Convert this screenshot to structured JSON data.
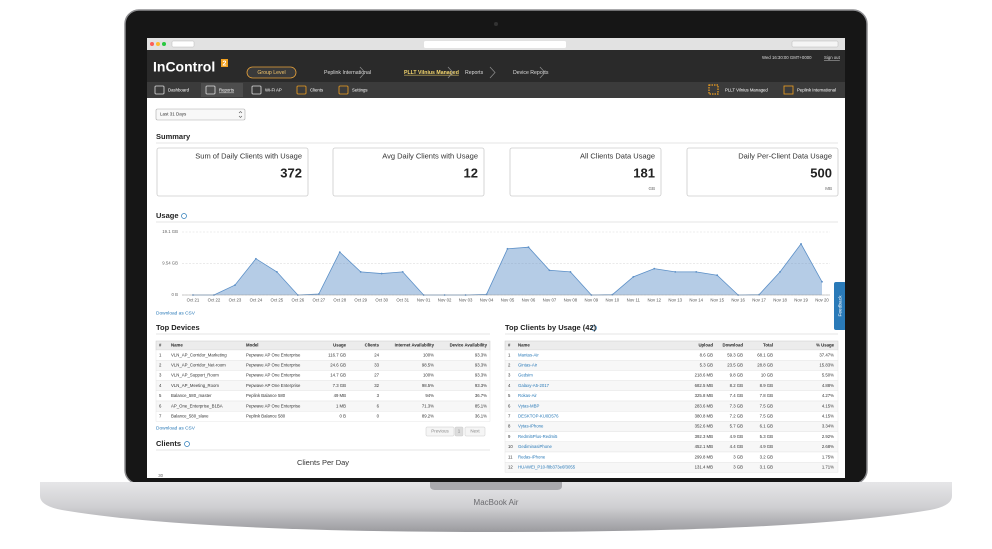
{
  "header": {
    "logo": "InControl",
    "logo_badge": "2",
    "breadcrumb": [
      "Group Level",
      "Peplink International",
      "PLLT Vilnius Managed",
      "Reports",
      "Device Reports"
    ],
    "datetime": "Wed 16:30:00 GMT+0000",
    "sign_out": "Sign out"
  },
  "nav": {
    "items": [
      "Dashboard",
      "Reports",
      "Wi-Fi AP",
      "Clients",
      "Settings"
    ],
    "right": [
      "PLLT Vilnius Managed",
      "Peplink International"
    ]
  },
  "filter": "Last 31 Days",
  "summary": {
    "title": "Summary",
    "cards": [
      {
        "label": "Sum of Daily Clients with Usage",
        "value": 372
      },
      {
        "label": "Avg Daily Clients with Usage",
        "value": 12
      },
      {
        "label": "All Clients Data Usage",
        "value": 181,
        "unit": "GB"
      },
      {
        "label": "Daily Per-Client Data Usage",
        "value": 500,
        "unit": "MB"
      }
    ]
  },
  "chart_data": {
    "type": "area",
    "title": "Usage",
    "color": "#5b8fc7",
    "categories": [
      "Oct 21",
      "Oct 22",
      "Oct 23",
      "Oct 24",
      "Oct 25",
      "Oct 26",
      "Oct 27",
      "Oct 28",
      "Oct 29",
      "Oct 30",
      "Oct 31",
      "Nov 01",
      "Nov 02",
      "Nov 03",
      "Nov 04",
      "Nov 05",
      "Nov 06",
      "Nov 07",
      "Nov 08",
      "Nov 09",
      "Nov 10",
      "Nov 11",
      "Nov 12",
      "Nov 13",
      "Nov 14",
      "Nov 15",
      "Nov 16",
      "Nov 17",
      "Nov 18",
      "Nov 19",
      "Nov 20"
    ],
    "values": [
      0,
      0,
      3,
      11,
      7,
      0,
      0.3,
      13,
      7,
      6.5,
      7,
      0,
      0,
      0,
      0.2,
      14,
      14.5,
      7.5,
      7,
      0,
      0.1,
      5.5,
      8,
      7,
      7,
      6,
      0,
      0.1,
      7,
      15.5,
      4
    ],
    "ylim": [
      0,
      19.1
    ],
    "yticks": [
      {
        "value": 0,
        "label": "0 B"
      },
      {
        "value": 9.54,
        "label": "9.54 GB"
      },
      {
        "value": 19.1,
        "label": "19.1 GB"
      }
    ],
    "grid": true
  },
  "download_csv": "Download as CSV",
  "top_devices": {
    "title": "Top Devices",
    "columns": [
      "#",
      "Name",
      "Model",
      "Usage",
      "Clients",
      "Internet Availability",
      "Device Availability"
    ],
    "rows": [
      [
        1,
        "VLN_AP_Corridor_Marketing",
        "Pepwave AP One Enterprise",
        "116.7 GB",
        "24",
        "100%",
        "93.3%"
      ],
      [
        2,
        "VLN_AP_Corridor_Net-room",
        "Pepwave AP One Enterprise",
        "24.6 GB",
        "33",
        "98.5%",
        "93.3%"
      ],
      [
        3,
        "VLN_AP_Support_Room",
        "Pepwave AP One Enterprise",
        "14.7 GB",
        "27",
        "100%",
        "93.3%"
      ],
      [
        4,
        "VLN_AP_Meeting_Room",
        "Pepwave AP One Enterprise",
        "7.3 GB",
        "32",
        "98.5%",
        "93.3%"
      ],
      [
        5,
        "Balance_580_master",
        "Peplink Balance 580",
        "49 MB",
        "3",
        "94%",
        "36.7%"
      ],
      [
        6,
        "AP_One_Enterprise_B1BA",
        "Pepwave AP One Enterprise",
        "1 MB",
        "6",
        "71.3%",
        "85.1%"
      ],
      [
        7,
        "Balance_580_slave",
        "Peplink Balance 580",
        "0 B",
        "0",
        "89.2%",
        "36.1%"
      ]
    ],
    "download": "Download as CSV",
    "pagination": [
      "Previous",
      "1",
      "Next"
    ]
  },
  "top_clients": {
    "title": "Top Clients by Usage (42)",
    "columns": [
      "#",
      "Name",
      "Upload",
      "Download",
      "Total",
      "% Usage"
    ],
    "rows": [
      [
        1,
        "Mantas-Air",
        "8.6 GB",
        "59.3 GB",
        "68.1 GB",
        "37.47%"
      ],
      [
        2,
        "Gintas-Air",
        "5.3 GB",
        "23.5 GB",
        "28.8 GB",
        "15.83%"
      ],
      [
        3,
        "Gedsim",
        "218.6 MB",
        "9.8 GB",
        "10 GB",
        "5.50%"
      ],
      [
        4,
        "Galaxy-A5-2017",
        "682.5 MB",
        "8.2 GB",
        "8.9 GB",
        "4.88%"
      ],
      [
        5,
        "Rokas-Air",
        "325.8 MB",
        "7.4 GB",
        "7.8 GB",
        "4.27%"
      ],
      [
        6,
        "Vytas-MBP",
        "283.6 MB",
        "7.3 GB",
        "7.5 GB",
        "4.15%"
      ],
      [
        7,
        "DESKTOP-KU0D576",
        "380.8 MB",
        "7.2 GB",
        "7.5 GB",
        "4.15%"
      ],
      [
        8,
        "Vytas-iPhone",
        "352.6 MB",
        "5.7 GB",
        "6.1 GB",
        "3.34%"
      ],
      [
        9,
        "Redmi5Plus-Redmi5",
        "392.3 MB",
        "4.9 GB",
        "5.3 GB",
        "2.92%"
      ],
      [
        10,
        "GediminasiPhone",
        "452.1 MB",
        "4.4 GB",
        "4.9 GB",
        "2.68%"
      ],
      [
        11,
        "Redas-iPhone",
        "299.8 MB",
        "3 GB",
        "3.2 GB",
        "1.75%"
      ],
      [
        12,
        "HUAWEI_P10-f8b373e6f3055",
        "131.4 MB",
        "3 GB",
        "3.1 GB",
        "1.71%"
      ]
    ]
  },
  "clients": {
    "title": "Clients",
    "chart_title": "Clients Per Day",
    "first_tick": 30
  },
  "feedback": "Feedback",
  "laptop_label": "MacBook Air"
}
